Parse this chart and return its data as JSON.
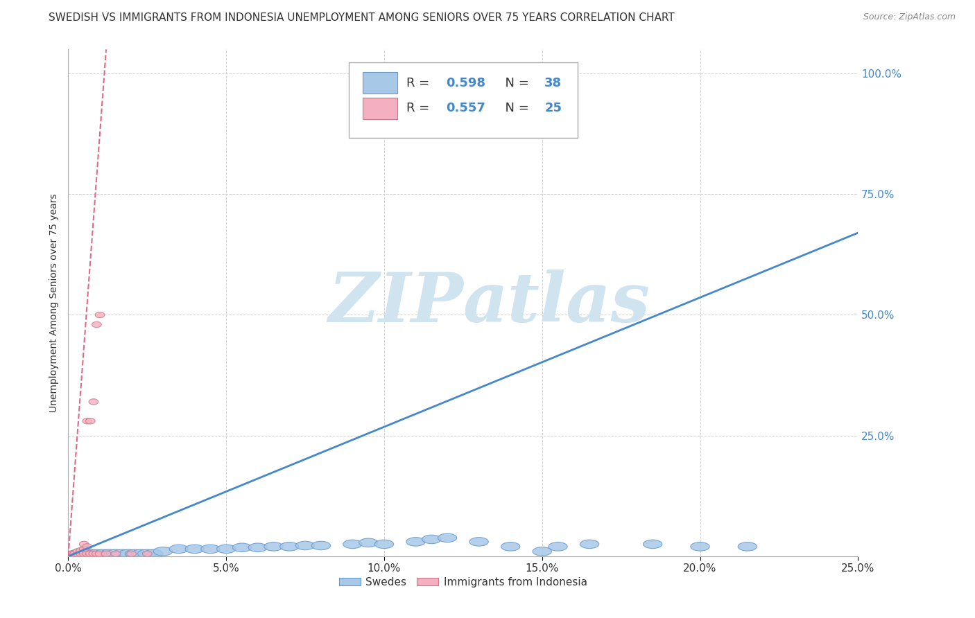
{
  "title": "SWEDISH VS IMMIGRANTS FROM INDONESIA UNEMPLOYMENT AMONG SENIORS OVER 75 YEARS CORRELATION CHART",
  "source": "Source: ZipAtlas.com",
  "ylabel": "Unemployment Among Seniors over 75 years",
  "xlim": [
    0.0,
    0.25
  ],
  "ylim": [
    0.0,
    1.05
  ],
  "xticks": [
    0.0,
    0.05,
    0.1,
    0.15,
    0.2,
    0.25
  ],
  "yticks": [
    0.0,
    0.25,
    0.5,
    0.75,
    1.0
  ],
  "xticklabels": [
    "0.0%",
    "5.0%",
    "10.0%",
    "15.0%",
    "20.0%",
    "25.0%"
  ],
  "yticklabels_right": [
    "",
    "25.0%",
    "50.0%",
    "75.0%",
    "100.0%"
  ],
  "blue_R": 0.598,
  "blue_N": 38,
  "pink_R": 0.557,
  "pink_N": 25,
  "blue_color": "#a8c8e8",
  "pink_color": "#f4b0c0",
  "blue_line_color": "#4488cc",
  "pink_line_color": "#e06888",
  "blue_scatter": [
    [
      0.003,
      0.005
    ],
    [
      0.005,
      0.005
    ],
    [
      0.007,
      0.005
    ],
    [
      0.009,
      0.005
    ],
    [
      0.011,
      0.005
    ],
    [
      0.013,
      0.005
    ],
    [
      0.015,
      0.005
    ],
    [
      0.017,
      0.005
    ],
    [
      0.019,
      0.005
    ],
    [
      0.021,
      0.005
    ],
    [
      0.023,
      0.005
    ],
    [
      0.025,
      0.005
    ],
    [
      0.027,
      0.005
    ],
    [
      0.03,
      0.01
    ],
    [
      0.035,
      0.015
    ],
    [
      0.04,
      0.015
    ],
    [
      0.045,
      0.015
    ],
    [
      0.05,
      0.015
    ],
    [
      0.055,
      0.018
    ],
    [
      0.06,
      0.018
    ],
    [
      0.065,
      0.02
    ],
    [
      0.07,
      0.02
    ],
    [
      0.075,
      0.022
    ],
    [
      0.08,
      0.022
    ],
    [
      0.09,
      0.025
    ],
    [
      0.095,
      0.028
    ],
    [
      0.1,
      0.025
    ],
    [
      0.11,
      0.03
    ],
    [
      0.115,
      0.035
    ],
    [
      0.12,
      0.038
    ],
    [
      0.13,
      0.03
    ],
    [
      0.14,
      0.02
    ],
    [
      0.15,
      0.01
    ],
    [
      0.155,
      0.02
    ],
    [
      0.165,
      0.025
    ],
    [
      0.185,
      0.025
    ],
    [
      0.2,
      0.02
    ],
    [
      0.215,
      0.02
    ]
  ],
  "pink_scatter": [
    [
      0.0,
      0.005
    ],
    [
      0.001,
      0.005
    ],
    [
      0.002,
      0.005
    ],
    [
      0.003,
      0.005
    ],
    [
      0.003,
      0.01
    ],
    [
      0.004,
      0.005
    ],
    [
      0.004,
      0.012
    ],
    [
      0.005,
      0.005
    ],
    [
      0.005,
      0.015
    ],
    [
      0.005,
      0.025
    ],
    [
      0.006,
      0.005
    ],
    [
      0.006,
      0.02
    ],
    [
      0.006,
      0.28
    ],
    [
      0.007,
      0.005
    ],
    [
      0.007,
      0.28
    ],
    [
      0.008,
      0.005
    ],
    [
      0.008,
      0.32
    ],
    [
      0.009,
      0.005
    ],
    [
      0.009,
      0.48
    ],
    [
      0.01,
      0.005
    ],
    [
      0.01,
      0.5
    ],
    [
      0.012,
      0.005
    ],
    [
      0.015,
      0.005
    ],
    [
      0.02,
      0.005
    ],
    [
      0.025,
      0.005
    ]
  ],
  "blue_trend_x": [
    0.0,
    0.25
  ],
  "blue_trend_y": [
    0.0,
    0.67
  ],
  "pink_trend_x": [
    0.0,
    0.012
  ],
  "pink_trend_y": [
    0.0,
    1.05
  ],
  "watermark_top": "ZIP",
  "watermark_bottom": "atlas",
  "watermark_color": "#d0e4f0",
  "background_color": "#ffffff",
  "tick_color": "#4488cc",
  "title_color": "#333333",
  "ylabel_color": "#333333"
}
